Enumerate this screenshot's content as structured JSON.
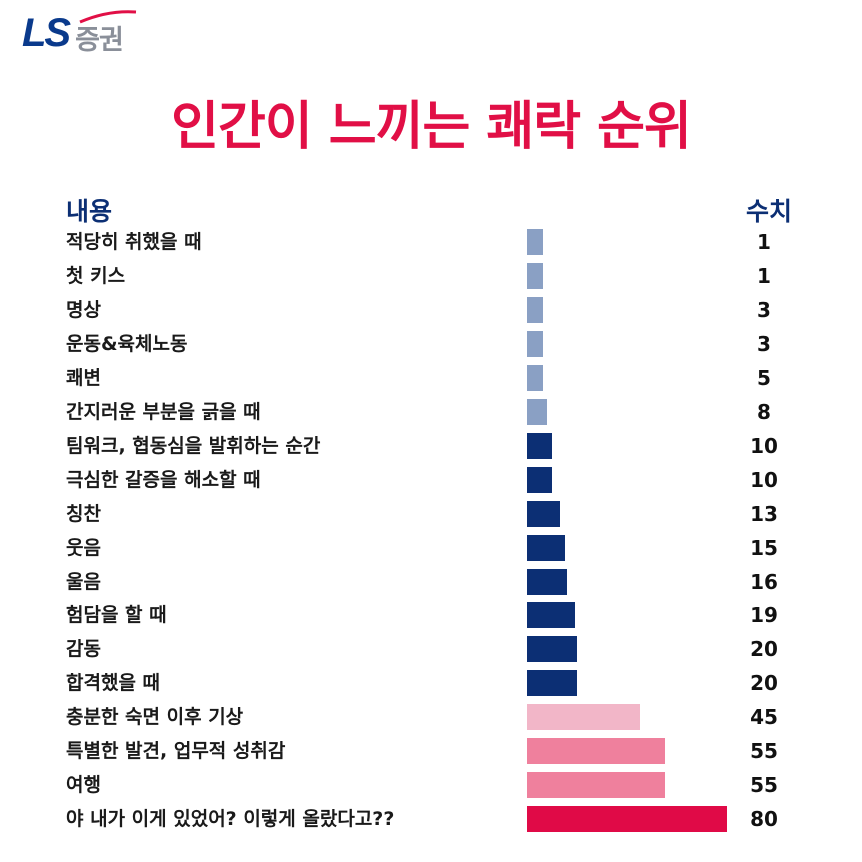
{
  "brand": {
    "logo_text": "LS",
    "sub": "증권"
  },
  "title": "인간이 느끼는 쾌락 순위",
  "headers": {
    "label": "내용",
    "value": "수치"
  },
  "colors": {
    "title": "#e10f46",
    "header": "#0c2f74",
    "bar_light_blue": "#8aa0c4",
    "bar_navy": "#0c2f74",
    "bar_light_pink": "#f2b6c8",
    "bar_pink": "#ef809d",
    "bar_red": "#e00a47"
  },
  "chart_data": {
    "type": "bar",
    "orientation": "horizontal",
    "xlim": [
      0,
      80
    ],
    "categories": [
      "적당히 취했을 때",
      "첫 키스",
      "명상",
      "운동&육체노동",
      "쾌변",
      "간지러운 부분을 긁을 때",
      "팀워크, 협동심을 발휘하는 순간",
      "극심한 갈증을 해소할 때",
      "칭찬",
      "웃음",
      "울음",
      "험담을 할 때",
      "감동",
      "합격했을 때",
      "충분한 숙면 이후 기상",
      "특별한 발견, 업무적 성취감",
      "여행",
      "야 내가 이게 있었어? 이렇게 올랐다고??"
    ],
    "values": [
      1,
      1,
      3,
      3,
      5,
      8,
      10,
      10,
      13,
      15,
      16,
      19,
      20,
      20,
      45,
      55,
      55,
      80
    ],
    "labels": [
      "1",
      "1",
      "3",
      "3",
      "5",
      "8",
      "10",
      "10",
      "13",
      "15",
      "16",
      "19",
      "20",
      "20",
      "45",
      "55",
      "55",
      "80"
    ],
    "bar_colors": [
      "#8aa0c4",
      "#8aa0c4",
      "#8aa0c4",
      "#8aa0c4",
      "#8aa0c4",
      "#8aa0c4",
      "#0c2f74",
      "#0c2f74",
      "#0c2f74",
      "#0c2f74",
      "#0c2f74",
      "#0c2f74",
      "#0c2f74",
      "#0c2f74",
      "#f2b6c8",
      "#ef809d",
      "#ef809d",
      "#e00a47"
    ]
  }
}
